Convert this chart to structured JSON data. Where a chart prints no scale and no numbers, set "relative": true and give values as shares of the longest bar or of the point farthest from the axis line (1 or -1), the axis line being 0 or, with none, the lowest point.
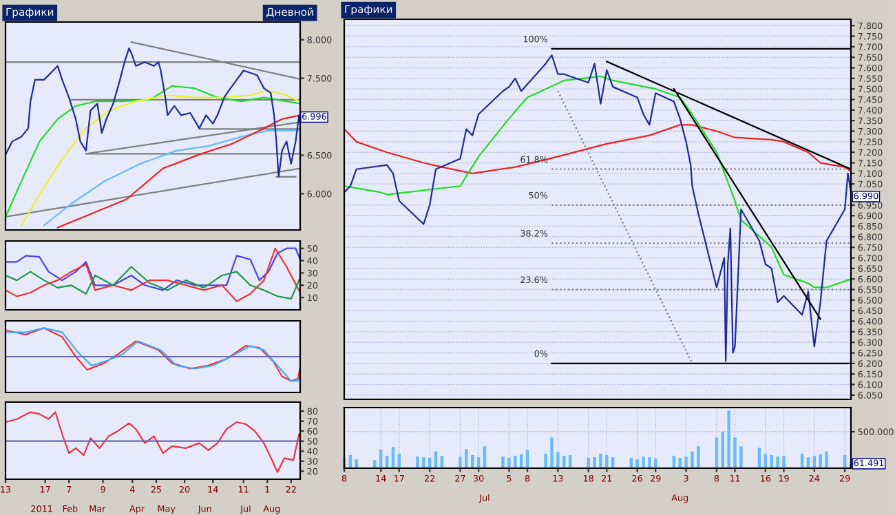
{
  "chart_data": [
    {
      "type": "line",
      "title": "Графики",
      "subtitle": "Дневной",
      "xlim": [
        "2010-12-13",
        "2011-08-30"
      ],
      "ylim": [
        5.53,
        8.23
      ],
      "tick_labels": "y",
      "yticks": [
        {
          "value": 6.0,
          "label": "6.000"
        },
        {
          "value": 6.5,
          "label": "6.500"
        },
        {
          "value": 7.5,
          "label": "7.500"
        },
        {
          "value": 8.0,
          "label": "8.000"
        }
      ],
      "annotations": [
        {
          "text": "6.996",
          "x": "2011-08-30",
          "y": 6.996
        }
      ],
      "series": [
        {
          "color": "#808080",
          "x": [
            "2011-04-03",
            "2011-08-30"
          ],
          "values": [
            7.97,
            7.49
          ]
        },
        {
          "color": "#808080",
          "x": [
            "2010-12-13",
            "2011-08-30"
          ],
          "values": [
            7.71,
            7.71
          ]
        },
        {
          "color": "#808080",
          "x": [
            "2011-02-09",
            "2011-08-30"
          ],
          "values": [
            7.22,
            7.22
          ]
        },
        {
          "color": "#808080",
          "x": [
            "2011-02-22",
            "2011-08-30"
          ],
          "values": [
            6.52,
            6.52
          ]
        },
        {
          "color": "#808080",
          "x": [
            "2010-12-13",
            "2011-08-30"
          ],
          "values": [
            5.7,
            6.33
          ]
        },
        {
          "color": "#808080",
          "x": [
            "2011-02-22",
            "2011-08-30"
          ],
          "values": [
            6.52,
            6.93
          ]
        },
        {
          "color": "#808080",
          "x": [
            "2011-06-02",
            "2011-08-30"
          ],
          "values": [
            6.84,
            6.84
          ]
        },
        {
          "color": "#808080",
          "x": [
            "2011-08-09",
            "2011-08-26"
          ],
          "values": [
            6.22,
            6.22
          ]
        },
        {
          "color": "#22dd22",
          "x": [
            "2010-12-13",
            "2010-12-27",
            "2011-01-12",
            "2011-01-28",
            "2011-02-13",
            "2011-03-02",
            "2011-03-26",
            "2011-04-19",
            "2011-05-09",
            "2011-05-29",
            "2011-06-18",
            "2011-07-09",
            "2011-07-29",
            "2011-08-18",
            "2011-08-30"
          ],
          "values": [
            5.7,
            6.16,
            6.68,
            6.97,
            7.14,
            7.2,
            7.2,
            7.22,
            7.4,
            7.37,
            7.25,
            7.2,
            7.25,
            7.2,
            7.17
          ]
        },
        {
          "color": "#f0f020",
          "x": [
            "2010-12-27",
            "2011-01-12",
            "2011-02-01",
            "2011-02-22",
            "2011-03-14",
            "2011-04-07",
            "2011-05-05",
            "2011-05-29",
            "2011-06-22",
            "2011-07-17",
            "2011-08-02",
            "2011-08-18",
            "2011-08-30"
          ],
          "values": [
            5.59,
            5.99,
            6.45,
            6.85,
            7.08,
            7.2,
            7.28,
            7.25,
            7.25,
            7.28,
            7.34,
            7.28,
            7.2
          ]
        },
        {
          "color": "#66bbff",
          "x": [
            "2011-01-16",
            "2011-02-09",
            "2011-03-10",
            "2011-04-11",
            "2011-05-13",
            "2011-06-10",
            "2011-07-09",
            "2011-08-02",
            "2011-08-30"
          ],
          "values": [
            5.59,
            5.87,
            6.16,
            6.39,
            6.56,
            6.62,
            6.74,
            6.82,
            6.82
          ]
        },
        {
          "color": "#ee2222",
          "x": [
            "2011-01-28",
            "2011-03-02",
            "2011-03-30",
            "2011-05-01",
            "2011-06-02",
            "2011-07-01",
            "2011-07-25",
            "2011-08-14",
            "2011-08-30"
          ],
          "values": [
            5.56,
            5.76,
            5.93,
            6.33,
            6.51,
            6.65,
            6.82,
            6.97,
            7.02
          ]
        },
        {
          "color": "#1f2a9e",
          "x": [
            "2010-12-13",
            "2010-12-19",
            "2010-12-27",
            "2011-01-02",
            "2011-01-04",
            "2011-01-08",
            "2011-01-16",
            "2011-01-24",
            "2011-01-28",
            "2011-02-01",
            "2011-02-07",
            "2011-02-13",
            "2011-02-17",
            "2011-02-22",
            "2011-02-26",
            "2011-03-04",
            "2011-03-08",
            "2011-03-12",
            "2011-03-18",
            "2011-03-24",
            "2011-03-28",
            "2011-04-01",
            "2011-04-03",
            "2011-04-07",
            "2011-04-15",
            "2011-04-23",
            "2011-04-27",
            "2011-04-29",
            "2011-05-03",
            "2011-05-05",
            "2011-05-11",
            "2011-05-17",
            "2011-05-25",
            "2011-06-02",
            "2011-06-08",
            "2011-06-14",
            "2011-06-18",
            "2011-06-24",
            "2011-06-28",
            "2011-07-05",
            "2011-07-11",
            "2011-07-17",
            "2011-07-23",
            "2011-07-29",
            "2011-08-04",
            "2011-08-07",
            "2011-08-09",
            "2011-08-11",
            "2011-08-14",
            "2011-08-18",
            "2011-08-22",
            "2011-08-26",
            "2011-08-29",
            "2011-08-30"
          ],
          "values": [
            6.51,
            6.68,
            6.74,
            6.85,
            7.2,
            7.48,
            7.48,
            7.6,
            7.66,
            7.48,
            7.25,
            6.97,
            6.68,
            6.56,
            7.08,
            7.17,
            6.79,
            6.97,
            7.17,
            7.48,
            7.71,
            7.89,
            7.83,
            7.66,
            7.71,
            7.66,
            7.71,
            7.6,
            7.25,
            7.02,
            7.14,
            7.02,
            7.05,
            6.85,
            7.02,
            6.91,
            7.02,
            7.25,
            7.34,
            7.48,
            7.6,
            7.57,
            7.54,
            7.37,
            7.31,
            7.02,
            6.68,
            6.22,
            6.56,
            6.68,
            6.39,
            6.68,
            7.02,
            6.91
          ]
        }
      ]
    },
    {
      "type": "line",
      "xlim": [
        "2010-12-13",
        "2011-08-30"
      ],
      "ylim": [
        0,
        56
      ],
      "yticks": [
        10,
        20,
        30,
        40,
        50
      ],
      "tick_labels": "y",
      "series": [
        {
          "color": "#4444ee",
          "x": [
            "2010-12-13",
            "2010-12-23",
            "2010-12-31",
            "2011-01-12",
            "2011-01-20",
            "2011-02-01",
            "2011-02-13",
            "2011-02-22",
            "2011-03-02",
            "2011-03-18",
            "2011-04-03",
            "2011-04-15",
            "2011-05-01",
            "2011-05-13",
            "2011-05-29",
            "2011-06-14",
            "2011-06-26",
            "2011-07-05",
            "2011-07-17",
            "2011-07-25",
            "2011-08-02",
            "2011-08-10",
            "2011-08-18",
            "2011-08-26",
            "2011-08-30"
          ],
          "values": [
            39,
            39,
            44,
            43,
            31,
            24,
            31,
            39,
            20,
            20,
            28,
            20,
            16,
            24,
            20,
            20,
            20,
            44,
            41,
            24,
            31,
            46,
            50,
            50,
            41
          ]
        },
        {
          "color": "#ee3333",
          "x": [
            "2010-12-13",
            "2010-12-23",
            "2011-01-04",
            "2011-01-16",
            "2011-01-28",
            "2011-02-09",
            "2011-02-22",
            "2011-03-02",
            "2011-03-18",
            "2011-04-03",
            "2011-04-19",
            "2011-05-05",
            "2011-05-21",
            "2011-06-06",
            "2011-06-22",
            "2011-07-05",
            "2011-07-17",
            "2011-07-29",
            "2011-08-08",
            "2011-08-18",
            "2011-08-30"
          ],
          "values": [
            16,
            11,
            14,
            20,
            24,
            31,
            37,
            16,
            20,
            16,
            24,
            24,
            20,
            16,
            20,
            7,
            13,
            24,
            50,
            35,
            14
          ]
        },
        {
          "color": "#229944",
          "x": [
            "2010-12-13",
            "2010-12-23",
            "2011-01-04",
            "2011-01-16",
            "2011-01-28",
            "2011-02-09",
            "2011-02-22",
            "2011-03-02",
            "2011-03-18",
            "2011-04-03",
            "2011-04-19",
            "2011-05-05",
            "2011-05-21",
            "2011-06-06",
            "2011-06-22",
            "2011-07-05",
            "2011-07-17",
            "2011-07-29",
            "2011-08-10",
            "2011-08-22",
            "2011-08-30"
          ],
          "values": [
            28,
            24,
            31,
            24,
            18,
            20,
            13,
            28,
            20,
            35,
            22,
            16,
            24,
            18,
            28,
            31,
            20,
            16,
            11,
            9,
            26
          ]
        }
      ]
    },
    {
      "type": "line",
      "relative": true,
      "xlim": [
        "2010-12-13",
        "2011-08-30"
      ],
      "tick_labels": "y",
      "ref_lines": [
        {
          "axis": "y",
          "value": 0,
          "color": "#6a6ab0"
        }
      ],
      "series": [
        {
          "color": "#ee3333",
          "x": [
            "2010-12-13",
            "2010-12-31",
            "2011-01-16",
            "2011-02-01",
            "2011-02-13",
            "2011-02-23",
            "2011-03-10",
            "2011-03-22",
            "2011-04-07",
            "2011-04-27",
            "2011-05-09",
            "2011-05-25",
            "2011-06-10",
            "2011-06-26",
            "2011-07-13",
            "2011-07-25",
            "2011-08-06",
            "2011-08-14",
            "2011-08-22",
            "2011-08-28",
            "2011-08-30"
          ],
          "values": [
            0.92,
            0.77,
            1.0,
            0.69,
            0,
            -0.46,
            -0.23,
            0.08,
            0.54,
            0.23,
            -0.23,
            -0.42,
            -0.31,
            -0.08,
            0.38,
            0.31,
            -0.15,
            -0.69,
            -0.85,
            -0.77,
            -0.38
          ]
        },
        {
          "color": "#44aaff",
          "x": [
            "2010-12-13",
            "2010-12-31",
            "2011-01-16",
            "2011-02-01",
            "2011-02-15",
            "2011-02-27",
            "2011-03-12",
            "2011-03-26",
            "2011-04-09",
            "2011-04-29",
            "2011-05-13",
            "2011-05-29",
            "2011-06-14",
            "2011-06-30",
            "2011-07-17",
            "2011-07-29",
            "2011-08-10",
            "2011-08-22",
            "2011-08-28",
            "2011-08-30"
          ],
          "values": [
            0.85,
            0.85,
            1.0,
            0.85,
            0.15,
            -0.31,
            -0.15,
            0.08,
            0.54,
            0.23,
            -0.31,
            -0.42,
            -0.31,
            0,
            0.38,
            0.23,
            -0.31,
            -0.85,
            -0.85,
            -0.69
          ]
        }
      ]
    },
    {
      "type": "line",
      "xlim": [
        "2010-12-13",
        "2011-08-30"
      ],
      "ylim": [
        12,
        89
      ],
      "yticks": [
        20,
        30,
        40,
        50,
        60,
        70,
        80
      ],
      "ref_lines": [
        {
          "axis": "y",
          "value": 50,
          "color": "#6a6ab0"
        }
      ],
      "xticks": [
        {
          "value": "2010-12-13",
          "label": "13"
        },
        {
          "value": "2011-01-17",
          "label": "17"
        },
        {
          "value": "2011-02-07",
          "label": "7"
        },
        {
          "value": "2011-03-09",
          "label": "9"
        },
        {
          "value": "2011-04-04",
          "label": "4"
        },
        {
          "value": "2011-04-25",
          "label": "25"
        },
        {
          "value": "2011-05-20",
          "label": "20"
        },
        {
          "value": "2011-06-14",
          "label": "14"
        },
        {
          "value": "2011-07-11",
          "label": "11"
        },
        {
          "value": "2011-08-01",
          "label": "1"
        },
        {
          "value": "2011-08-22",
          "label": "22"
        }
      ],
      "x2lim": [
        "2010-12-13",
        "2011-08-30"
      ],
      "x2ticks": [
        {
          "value": "2011-01-14",
          "label": "2011"
        },
        {
          "value": "2011-02-08",
          "label": "Feb"
        },
        {
          "value": "2011-03-04",
          "label": "Mar"
        },
        {
          "value": "2011-04-08",
          "label": "Apr"
        },
        {
          "value": "2011-05-04",
          "label": "May"
        },
        {
          "value": "2011-06-07",
          "label": "Jun"
        },
        {
          "value": "2011-07-13",
          "label": "Jul"
        },
        {
          "value": "2011-08-05",
          "label": "Aug"
        }
      ],
      "series": [
        {
          "color": "#ee3344",
          "x": [
            "2010-12-13",
            "2010-12-23",
            "2011-01-04",
            "2011-01-12",
            "2011-01-20",
            "2011-01-26",
            "2011-02-01",
            "2011-02-07",
            "2011-02-13",
            "2011-02-20",
            "2011-02-26",
            "2011-03-06",
            "2011-03-14",
            "2011-03-22",
            "2011-04-01",
            "2011-04-07",
            "2011-04-15",
            "2011-04-23",
            "2011-05-01",
            "2011-05-09",
            "2011-05-21",
            "2011-06-02",
            "2011-06-10",
            "2011-06-18",
            "2011-06-26",
            "2011-07-05",
            "2011-07-13",
            "2011-07-21",
            "2011-07-29",
            "2011-08-06",
            "2011-08-10",
            "2011-08-16",
            "2011-08-24",
            "2011-08-29",
            "2011-08-30"
          ],
          "values": [
            69,
            72,
            79,
            77,
            72,
            79,
            57,
            38,
            43,
            36,
            53,
            43,
            55,
            60,
            68,
            62,
            48,
            55,
            38,
            45,
            43,
            48,
            41,
            48,
            62,
            69,
            67,
            60,
            48,
            29,
            19,
            33,
            31,
            57,
            55
          ]
        }
      ]
    },
    {
      "type": "line",
      "title": "Графики",
      "xlim": [
        "2011-06-08",
        "2011-08-30"
      ],
      "ylim": [
        6.03,
        7.83
      ],
      "grid": true,
      "tick_labels": "y",
      "yticks": [
        {
          "value": 6.05,
          "label": "6.050"
        },
        {
          "value": 6.1,
          "label": "6.100"
        },
        {
          "value": 6.15,
          "label": "6.150"
        },
        {
          "value": 6.2,
          "label": "6.200"
        },
        {
          "value": 6.25,
          "label": "6.250"
        },
        {
          "value": 6.3,
          "label": "6.300"
        },
        {
          "value": 6.35,
          "label": "6.350"
        },
        {
          "value": 6.4,
          "label": "6.400"
        },
        {
          "value": 6.45,
          "label": "6.450"
        },
        {
          "value": 6.5,
          "label": "6.500"
        },
        {
          "value": 6.55,
          "label": "6.550"
        },
        {
          "value": 6.6,
          "label": "6.600"
        },
        {
          "value": 6.65,
          "label": "6.650"
        },
        {
          "value": 6.7,
          "label": "6.700"
        },
        {
          "value": 6.75,
          "label": "6.750"
        },
        {
          "value": 6.8,
          "label": "6.800"
        },
        {
          "value": 6.85,
          "label": "6.850"
        },
        {
          "value": 6.9,
          "label": "6.900"
        },
        {
          "value": 6.95,
          "label": "6.950"
        },
        {
          "value": 7.05,
          "label": "7.050"
        },
        {
          "value": 7.1,
          "label": "7.100"
        },
        {
          "value": 7.15,
          "label": "7.150"
        },
        {
          "value": 7.2,
          "label": "7.200"
        },
        {
          "value": 7.25,
          "label": "7.250"
        },
        {
          "value": 7.3,
          "label": "7.300"
        },
        {
          "value": 7.35,
          "label": "7.350"
        },
        {
          "value": 7.4,
          "label": "7.400"
        },
        {
          "value": 7.45,
          "label": "7.450"
        },
        {
          "value": 7.5,
          "label": "7.500"
        },
        {
          "value": 7.55,
          "label": "7.550"
        },
        {
          "value": 7.6,
          "label": "7.600"
        },
        {
          "value": 7.65,
          "label": "7.650"
        },
        {
          "value": 7.7,
          "label": "7.700"
        },
        {
          "value": 7.75,
          "label": "7.750"
        },
        {
          "value": 7.8,
          "label": "7.800"
        }
      ],
      "annotations": [
        {
          "text": "6.990",
          "x": "2011-08-30",
          "y": 6.99
        },
        {
          "text": "100%",
          "x": "2011-07-12",
          "y": 7.69
        },
        {
          "text": "61.8%",
          "x": "2011-07-12",
          "y": 7.12
        },
        {
          "text": "50%",
          "x": "2011-07-12",
          "y": 6.95
        },
        {
          "text": "38.2%",
          "x": "2011-07-12",
          "y": 6.77
        },
        {
          "text": "23.6%",
          "x": "2011-07-12",
          "y": 6.55
        },
        {
          "text": "0%",
          "x": "2011-07-12",
          "y": 6.2
        }
      ],
      "series": [
        {
          "color": "#000000",
          "x": [
            "2011-07-12",
            "2011-08-30"
          ],
          "values": [
            7.69,
            7.69
          ]
        },
        {
          "color": "#808080",
          "line_style": "dotted",
          "x": [
            "2011-07-12",
            "2011-08-30"
          ],
          "values": [
            7.12,
            7.12
          ]
        },
        {
          "color": "#808080",
          "line_style": "dotted",
          "x": [
            "2011-07-12",
            "2011-08-30"
          ],
          "values": [
            6.95,
            6.95
          ]
        },
        {
          "color": "#808080",
          "line_style": "dotted",
          "x": [
            "2011-07-12",
            "2011-08-30"
          ],
          "values": [
            6.77,
            6.77
          ]
        },
        {
          "color": "#808080",
          "line_style": "dotted",
          "x": [
            "2011-07-12",
            "2011-08-30"
          ],
          "values": [
            6.55,
            6.55
          ]
        },
        {
          "color": "#000000",
          "x": [
            "2011-07-12",
            "2011-08-30"
          ],
          "values": [
            6.2,
            6.2
          ]
        },
        {
          "color": "#808080",
          "line_style": "dotted",
          "x": [
            "2011-07-13",
            "2011-08-04"
          ],
          "values": [
            7.49,
            6.2
          ]
        },
        {
          "color": "#ee2222",
          "x": [
            "2011-06-08",
            "2011-06-10",
            "2011-06-15",
            "2011-06-21",
            "2011-06-24",
            "2011-06-29",
            "2011-07-06",
            "2011-07-13",
            "2011-07-21",
            "2011-07-28",
            "2011-08-02",
            "2011-08-04",
            "2011-08-08",
            "2011-08-11",
            "2011-08-17",
            "2011-08-19",
            "2011-08-23",
            "2011-08-25",
            "2011-08-29",
            "2011-08-30"
          ],
          "values": [
            7.31,
            7.25,
            7.2,
            7.15,
            7.13,
            7.1,
            7.13,
            7.18,
            7.24,
            7.28,
            7.33,
            7.33,
            7.3,
            7.27,
            7.26,
            7.25,
            7.2,
            7.15,
            7.13,
            7.11
          ]
        },
        {
          "color": "#22dd22",
          "x": [
            "2011-06-08",
            "2011-06-14",
            "2011-06-15",
            "2011-06-21",
            "2011-06-27",
            "2011-06-30",
            "2011-07-05",
            "2011-07-08",
            "2011-07-14",
            "2011-07-20",
            "2011-07-22",
            "2011-07-29",
            "2011-08-02",
            "2011-08-04",
            "2011-08-08",
            "2011-08-11",
            "2011-08-12",
            "2011-08-17",
            "2011-08-19",
            "2011-08-23",
            "2011-08-24",
            "2011-08-26",
            "2011-08-30"
          ],
          "values": [
            7.04,
            7.01,
            7.0,
            7.02,
            7.04,
            7.18,
            7.36,
            7.46,
            7.54,
            7.56,
            7.54,
            7.5,
            7.46,
            7.38,
            7.2,
            6.97,
            6.88,
            6.75,
            6.62,
            6.58,
            6.56,
            6.56,
            6.6
          ]
        },
        {
          "color": "#1f2a9e",
          "x": [
            "2011-06-08",
            "2011-06-09",
            "2011-06-10",
            "2011-06-15",
            "2011-06-16",
            "2011-06-17",
            "2011-06-21",
            "2011-06-22",
            "2011-06-23",
            "2011-06-27",
            "2011-06-28",
            "2011-06-29",
            "2011-06-30",
            "2011-07-04",
            "2011-07-05",
            "2011-07-06",
            "2011-07-07",
            "2011-07-11",
            "2011-07-12",
            "2011-07-13",
            "2011-07-14",
            "2011-07-18",
            "2011-07-19",
            "2011-07-20",
            "2011-07-21",
            "2011-07-22",
            "2011-07-26",
            "2011-07-27",
            "2011-07-28",
            "2011-07-29",
            "2011-08-01",
            "2011-08-02",
            "2011-08-03",
            "2011-08-03T18:00",
            "2011-08-04",
            "2011-08-05",
            "2011-08-08",
            "2011-08-09T06:00",
            "2011-08-09T12:00",
            "2011-08-09T20:00",
            "2011-08-10T06:00",
            "2011-08-10T16:00",
            "2011-08-11",
            "2011-08-12",
            "2011-08-15",
            "2011-08-16",
            "2011-08-17",
            "2011-08-18",
            "2011-08-19",
            "2011-08-22",
            "2011-08-23",
            "2011-08-24",
            "2011-08-25",
            "2011-08-26",
            "2011-08-29",
            "2011-08-29T12:00",
            "2011-08-30"
          ],
          "values": [
            7.01,
            7.04,
            7.12,
            7.14,
            7.1,
            6.97,
            6.86,
            6.95,
            7.12,
            7.17,
            7.31,
            7.28,
            7.38,
            7.49,
            7.51,
            7.55,
            7.49,
            7.62,
            7.66,
            7.57,
            7.57,
            7.53,
            7.62,
            7.43,
            7.59,
            7.51,
            7.46,
            7.38,
            7.33,
            7.48,
            7.44,
            7.36,
            7.25,
            7.14,
            7.04,
            6.91,
            6.56,
            6.7,
            6.21,
            6.67,
            6.84,
            6.25,
            6.28,
            6.93,
            6.78,
            6.67,
            6.65,
            6.49,
            6.52,
            6.43,
            6.54,
            6.28,
            6.49,
            6.78,
            6.93,
            7.1,
            7.01
          ]
        },
        {
          "color": "#000000",
          "x": [
            "2011-07-21",
            "2011-08-30"
          ],
          "values": [
            7.63,
            7.12
          ]
        },
        {
          "color": "#000000",
          "x": [
            "2011-08-01",
            "2011-08-25"
          ],
          "values": [
            7.5,
            6.41
          ]
        }
      ]
    },
    {
      "type": "bar",
      "xlim": [
        "2011-06-08",
        "2011-08-30"
      ],
      "ylim": [
        0,
        830
      ],
      "grid": true,
      "yticks": [
        {
          "value": 500,
          "label": "500.000"
        }
      ],
      "annotations": [
        {
          "text": "61.491",
          "x": "2011-08-30",
          "y": 61.491
        }
      ],
      "xticks": [
        {
          "value": "2011-06-08",
          "label": "8"
        },
        {
          "value": "2011-06-14",
          "label": "14"
        },
        {
          "value": "2011-06-17",
          "label": "17"
        },
        {
          "value": "2011-06-22",
          "label": "22"
        },
        {
          "value": "2011-06-27",
          "label": "27"
        },
        {
          "value": "2011-06-30",
          "label": "30"
        },
        {
          "value": "2011-07-05",
          "label": "5"
        },
        {
          "value": "2011-07-08",
          "label": "8"
        },
        {
          "value": "2011-07-13",
          "label": "13"
        },
        {
          "value": "2011-07-18",
          "label": "18"
        },
        {
          "value": "2011-07-21",
          "label": "21"
        },
        {
          "value": "2011-07-26",
          "label": "26"
        },
        {
          "value": "2011-07-29",
          "label": "29"
        },
        {
          "value": "2011-08-03",
          "label": "3"
        },
        {
          "value": "2011-08-08",
          "label": "8"
        },
        {
          "value": "2011-08-11",
          "label": "11"
        },
        {
          "value": "2011-08-16",
          "label": "16"
        },
        {
          "value": "2011-08-19",
          "label": "19"
        },
        {
          "value": "2011-08-24",
          "label": "24"
        },
        {
          "value": "2011-08-29",
          "label": "29"
        }
      ],
      "x2lim": [
        "2011-06-08",
        "2011-08-30"
      ],
      "x2ticks": [
        {
          "value": "2011-07-01",
          "label": "Jul"
        },
        {
          "value": "2011-08-02",
          "label": "Aug"
        }
      ],
      "series": [
        {
          "color": "#66bbff",
          "x": [
            "2011-06-08",
            "2011-06-09",
            "2011-06-10",
            "2011-06-13",
            "2011-06-14",
            "2011-06-15",
            "2011-06-16",
            "2011-06-17",
            "2011-06-20",
            "2011-06-21",
            "2011-06-22",
            "2011-06-23",
            "2011-06-24",
            "2011-06-27",
            "2011-06-28",
            "2011-06-29",
            "2011-06-30",
            "2011-07-01",
            "2011-07-04",
            "2011-07-05",
            "2011-07-06",
            "2011-07-07",
            "2011-07-08",
            "2011-07-11",
            "2011-07-12",
            "2011-07-13",
            "2011-07-14",
            "2011-07-15",
            "2011-07-18",
            "2011-07-19",
            "2011-07-20",
            "2011-07-21",
            "2011-07-22",
            "2011-07-25",
            "2011-07-26",
            "2011-07-27",
            "2011-07-28",
            "2011-07-29",
            "2011-08-01",
            "2011-08-02",
            "2011-08-03",
            "2011-08-04",
            "2011-08-05",
            "2011-08-08",
            "2011-08-09",
            "2011-08-10",
            "2011-08-11",
            "2011-08-12",
            "2011-08-15",
            "2011-08-16",
            "2011-08-17",
            "2011-08-18",
            "2011-08-19",
            "2011-08-22",
            "2011-08-23",
            "2011-08-24",
            "2011-08-25",
            "2011-08-26",
            "2011-08-29",
            "2011-08-30"
          ],
          "values": [
            150,
            180,
            120,
            110,
            260,
            170,
            290,
            200,
            160,
            150,
            140,
            230,
            170,
            160,
            260,
            180,
            150,
            300,
            160,
            140,
            170,
            190,
            250,
            200,
            420,
            220,
            170,
            180,
            140,
            150,
            200,
            180,
            150,
            140,
            120,
            160,
            150,
            130,
            170,
            140,
            160,
            230,
            300,
            420,
            500,
            790,
            420,
            300,
            280,
            200,
            180,
            160,
            170,
            200,
            150,
            170,
            190,
            230,
            180,
            61.491
          ]
        }
      ]
    }
  ]
}
